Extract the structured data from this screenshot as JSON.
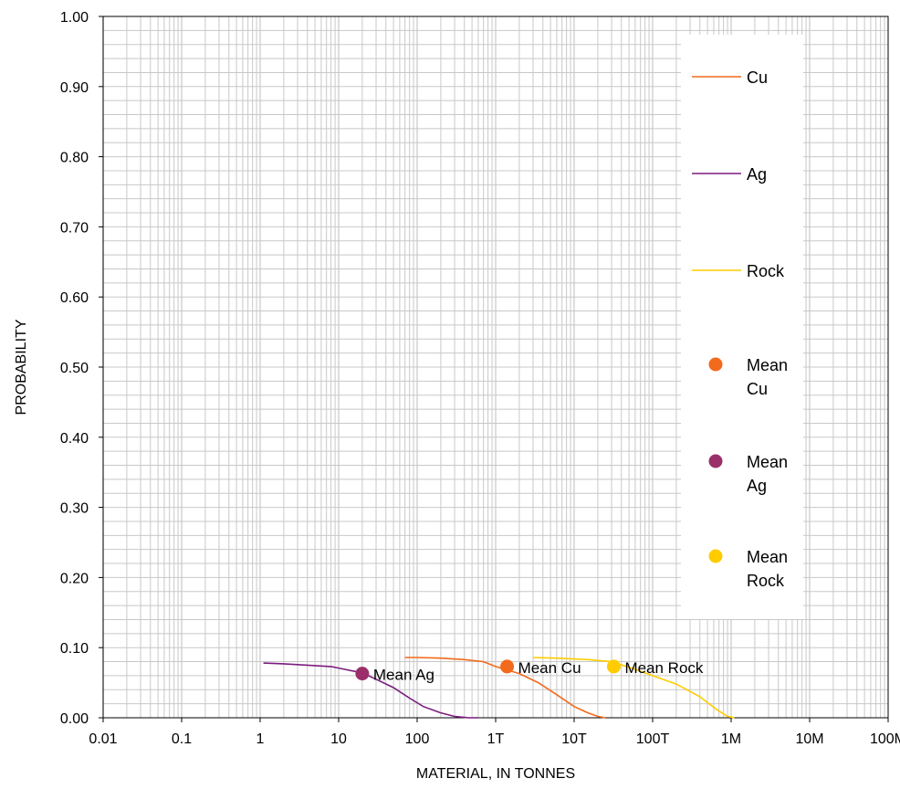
{
  "chart_data": {
    "type": "line",
    "xlabel": "MATERIAL, IN TONNES",
    "ylabel": "PROBABILITY",
    "x_scale": "log",
    "xlim": [
      0.01,
      100000000
    ],
    "ylim": [
      0,
      1
    ],
    "grid": true,
    "x_ticks": [
      {
        "value": 0.01,
        "label": "0.01"
      },
      {
        "value": 0.1,
        "label": "0.1"
      },
      {
        "value": 1,
        "label": "1"
      },
      {
        "value": 10,
        "label": "10"
      },
      {
        "value": 100,
        "label": "100"
      },
      {
        "value": 1000,
        "label": "1T"
      },
      {
        "value": 10000,
        "label": "10T"
      },
      {
        "value": 100000,
        "label": "100T"
      },
      {
        "value": 1000000,
        "label": "1M"
      },
      {
        "value": 10000000,
        "label": "10M"
      },
      {
        "value": 100000000,
        "label": "100M"
      }
    ],
    "y_ticks": [
      {
        "value": 0,
        "label": "0.00"
      },
      {
        "value": 0.1,
        "label": "0.10"
      },
      {
        "value": 0.2,
        "label": "0.20"
      },
      {
        "value": 0.3,
        "label": "0.30"
      },
      {
        "value": 0.4,
        "label": "0.40"
      },
      {
        "value": 0.5,
        "label": "0.50"
      },
      {
        "value": 0.6,
        "label": "0.60"
      },
      {
        "value": 0.7,
        "label": "0.70"
      },
      {
        "value": 0.8,
        "label": "0.80"
      },
      {
        "value": 0.9,
        "label": "0.90"
      },
      {
        "value": 1,
        "label": "1.00"
      }
    ],
    "legend_position": "right",
    "series": [
      {
        "name": "Cu",
        "kind": "line",
        "color": "#F26A1B",
        "x": [
          70,
          100,
          200,
          400,
          700,
          1000,
          2000,
          3500,
          6000,
          10000,
          15000,
          20000,
          25000
        ],
        "y": [
          0.086,
          0.086,
          0.085,
          0.083,
          0.08,
          0.073,
          0.063,
          0.05,
          0.033,
          0.016,
          0.007,
          0.002,
          0.0
        ]
      },
      {
        "name": "Ag",
        "kind": "line",
        "color": "#7B1C7E",
        "x": [
          1.1,
          2,
          4,
          8,
          12,
          20,
          30,
          50,
          80,
          120,
          200,
          300,
          450,
          600
        ],
        "y": [
          0.078,
          0.077,
          0.075,
          0.073,
          0.069,
          0.064,
          0.055,
          0.043,
          0.028,
          0.016,
          0.007,
          0.002,
          0.0,
          0.0
        ]
      },
      {
        "name": "Rock",
        "kind": "line",
        "color": "#FFCC00",
        "x": [
          3000,
          6000,
          15000,
          30000,
          60000,
          100000,
          200000,
          400000,
          650000,
          900000,
          1100000
        ],
        "y": [
          0.086,
          0.085,
          0.083,
          0.08,
          0.069,
          0.06,
          0.048,
          0.03,
          0.012,
          0.002,
          0.0
        ]
      },
      {
        "name": "Mean Cu",
        "kind": "point",
        "color": "#F26A1B",
        "x": 1400,
        "y": 0.073,
        "annotation": "Mean Cu"
      },
      {
        "name": "Mean Ag",
        "kind": "point",
        "color": "#9B2F69",
        "x": 20,
        "y": 0.063,
        "annotation": "Mean Ag"
      },
      {
        "name": "Mean Rock",
        "kind": "point",
        "color": "#FFCC00",
        "x": 32000,
        "y": 0.073,
        "annotation": "Mean Rock"
      }
    ],
    "legend": [
      {
        "label_lines": [
          "Cu"
        ],
        "symbol": "line",
        "color": "#F26A1B"
      },
      {
        "label_lines": [
          "Ag"
        ],
        "symbol": "line",
        "color": "#7B1C7E"
      },
      {
        "label_lines": [
          "Rock"
        ],
        "symbol": "line",
        "color": "#FFCC00"
      },
      {
        "label_lines": [
          "Mean",
          "Cu"
        ],
        "symbol": "point",
        "color": "#F26A1B"
      },
      {
        "label_lines": [
          "Mean",
          "Ag"
        ],
        "symbol": "point",
        "color": "#9B2F69"
      },
      {
        "label_lines": [
          "Mean",
          "Rock"
        ],
        "symbol": "point",
        "color": "#FFCC00"
      }
    ]
  }
}
